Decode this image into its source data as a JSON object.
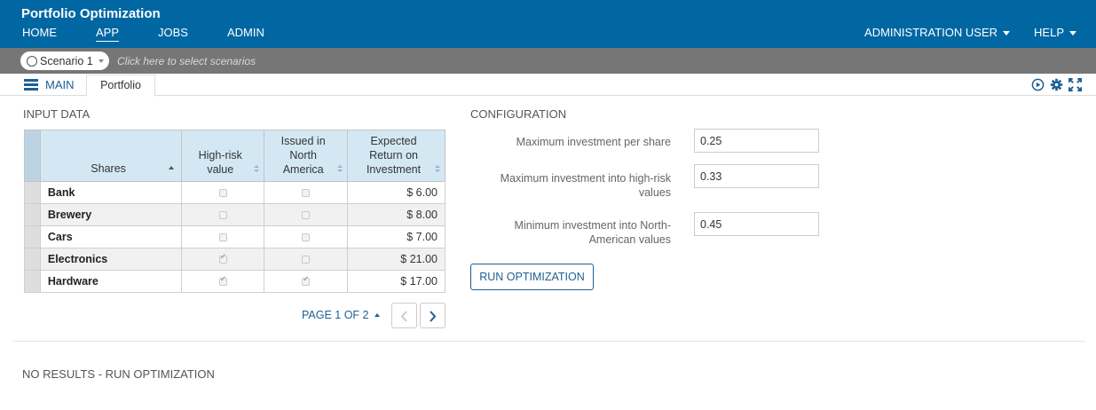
{
  "header": {
    "app_title": "Portfolio Optimization",
    "nav": [
      {
        "label": "HOME"
      },
      {
        "label": "APP",
        "active": true
      },
      {
        "label": "JOBS"
      },
      {
        "label": "ADMIN"
      }
    ],
    "user_menu": "ADMINISTRATION USER",
    "help_menu": "HELP",
    "colors": {
      "header_bg": "#0067a3",
      "accent": "#1f5f91",
      "scenario_bar_bg": "#767676"
    }
  },
  "scenario": {
    "selected": "Scenario 1",
    "hint": "Click here to select scenarios"
  },
  "tabs": {
    "main_label": "MAIN",
    "active_tab": "Portfolio",
    "toolbar_icons": [
      "play-circle-icon",
      "gear-icon",
      "expand-icon"
    ]
  },
  "input_data": {
    "title": "INPUT DATA",
    "columns": [
      "Shares",
      "High-risk value",
      "Issued in North America",
      "Expected Return on Investment"
    ],
    "rows": [
      {
        "share": "Bank",
        "high_risk": false,
        "north_america": false,
        "return": "$ 6.00"
      },
      {
        "share": "Brewery",
        "high_risk": false,
        "north_america": false,
        "return": "$ 8.00"
      },
      {
        "share": "Cars",
        "high_risk": false,
        "north_america": false,
        "return": "$ 7.00"
      },
      {
        "share": "Electronics",
        "high_risk": true,
        "north_america": false,
        "return": "$ 21.00"
      },
      {
        "share": "Hardware",
        "high_risk": true,
        "north_america": true,
        "return": "$ 17.00"
      }
    ],
    "pagination": {
      "label": "PAGE 1 OF 2"
    }
  },
  "configuration": {
    "title": "CONFIGURATION",
    "fields": [
      {
        "label": "Maximum investment per share",
        "value": "0.25"
      },
      {
        "label": "Maximum investment into high-risk values",
        "value": "0.33"
      },
      {
        "label": "Minimum investment into North-American values",
        "value": "0.45"
      }
    ],
    "run_button": "RUN OPTIMIZATION"
  },
  "results": {
    "message": "NO RESULTS - RUN OPTIMIZATION"
  }
}
